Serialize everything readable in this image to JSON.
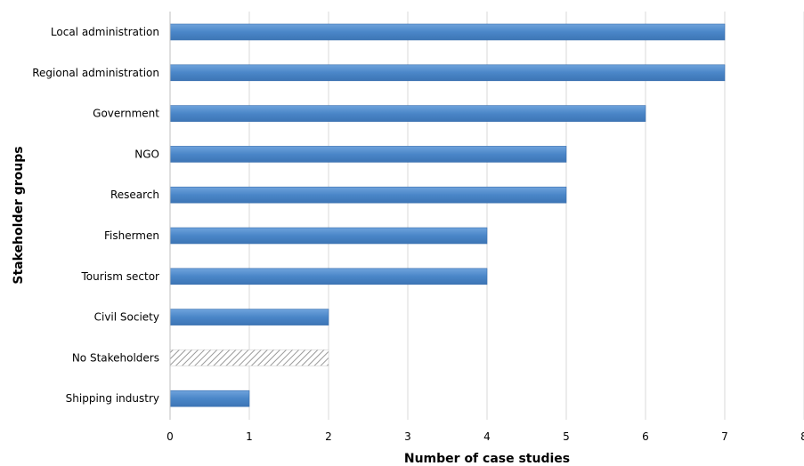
{
  "chart_data": {
    "type": "bar",
    "orientation": "horizontal",
    "title": "",
    "xlabel": "Number of case studies",
    "ylabel": "Stakeholder groups",
    "xlim": [
      0,
      8
    ],
    "xticks": [
      0,
      1,
      2,
      3,
      4,
      5,
      6,
      7,
      8
    ],
    "grid": "vertical",
    "legend": "none",
    "categories": [
      "Local administration",
      "Regional administration",
      "Government",
      "NGO",
      "Research",
      "Fishermen",
      "Tourism sector",
      "Civil Society",
      "No Stakeholders",
      "Shipping industry"
    ],
    "values": [
      7,
      7,
      6,
      5,
      5,
      4,
      4,
      2,
      2,
      1
    ],
    "styles": [
      "solid",
      "solid",
      "solid",
      "solid",
      "solid",
      "solid",
      "solid",
      "solid",
      "hatched",
      "solid"
    ],
    "colors": {
      "bar": "#4a86c8",
      "bar_edge": "#3a6fae",
      "hatched": "#9a9a9a",
      "grid": "#d9d9d9"
    }
  }
}
